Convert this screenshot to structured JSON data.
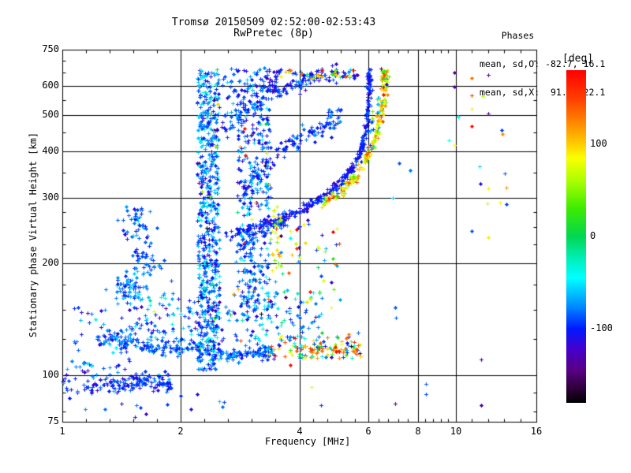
{
  "header": {
    "title": "Tromsø 20150509 02:52:00-02:53:43",
    "subtitle": "RwPretec (8p)"
  },
  "stats": {
    "heading": "    Phases",
    "line_o": "mean, sd,O: -82.7, 16.1",
    "line_x": "mean, sd,X:  91.1, 22.1"
  },
  "colorbar": {
    "unit": "[deg]",
    "tick_values": [
      100,
      0,
      -100
    ],
    "tick_labels": [
      "100",
      "0",
      "-100"
    ],
    "range": [
      -180,
      180
    ]
  },
  "chart_data": {
    "type": "scatter",
    "title": "Tromsø 20150509 02:52:00-02:53:43",
    "subtitle": "RwPretec (8p)",
    "xlabel": "Frequency [MHz]",
    "ylabel": "Stationary phase Virtual Height [km]",
    "x_scale": "log",
    "y_scale": "log",
    "xlim": [
      1,
      16
    ],
    "ylim": [
      75,
      750
    ],
    "x_major_ticks": [
      1,
      2,
      4,
      6,
      8,
      10,
      16
    ],
    "x_major_labels": [
      "1",
      "2",
      "4",
      "6",
      "8",
      "10",
      "16"
    ],
    "x_minor_divisions": 5,
    "y_labeled_ticks": [
      750,
      600,
      500,
      400,
      300,
      200,
      100,
      75
    ],
    "y_labeled_strings": [
      "750",
      "600",
      "500",
      "400",
      "300",
      "200",
      "100",
      "75"
    ],
    "y_minor_ticks": [
      700,
      650,
      550,
      450,
      350,
      275,
      250,
      225,
      175,
      150,
      125,
      90,
      80
    ],
    "x_gridlines": [
      2,
      4,
      6,
      8,
      10
    ],
    "y_gridlines": [
      600,
      500,
      400,
      300,
      200,
      100
    ],
    "grid_color": "#000000",
    "marker": "plus",
    "legend_position": "right-colorbar",
    "colormap_stops": [
      {
        "v": 180,
        "c": [
          255,
          0,
          0
        ]
      },
      {
        "v": 150,
        "c": [
          255,
          60,
          0
        ]
      },
      {
        "v": 120,
        "c": [
          255,
          145,
          0
        ]
      },
      {
        "v": 100,
        "c": [
          255,
          205,
          0
        ]
      },
      {
        "v": 85,
        "c": [
          250,
          255,
          0
        ]
      },
      {
        "v": 60,
        "c": [
          170,
          255,
          0
        ]
      },
      {
        "v": 30,
        "c": [
          60,
          235,
          0
        ]
      },
      {
        "v": 0,
        "c": [
          0,
          215,
          80
        ]
      },
      {
        "v": -25,
        "c": [
          0,
          240,
          190
        ]
      },
      {
        "v": -45,
        "c": [
          0,
          255,
          255
        ]
      },
      {
        "v": -75,
        "c": [
          0,
          140,
          255
        ]
      },
      {
        "v": -100,
        "c": [
          0,
          25,
          255
        ]
      },
      {
        "v": -122,
        "c": [
          70,
          0,
          205
        ]
      },
      {
        "v": -145,
        "c": [
          88,
          0,
          130
        ]
      },
      {
        "v": -165,
        "c": [
          45,
          0,
          55
        ]
      },
      {
        "v": -180,
        "c": [
          0,
          0,
          0
        ]
      }
    ],
    "phase_mean_sd_O": [
      -82.7,
      16.1
    ],
    "phase_mean_sd_X": [
      91.1,
      22.1
    ],
    "clusters": [
      {
        "name": "ground-echo-trace",
        "type": "trace",
        "n": 170,
        "points": [
          [
            1.0,
            95
          ],
          [
            1.15,
            93
          ],
          [
            1.3,
            96
          ],
          [
            1.45,
            94
          ],
          [
            1.6,
            96
          ],
          [
            1.75,
            95
          ],
          [
            1.88,
            97
          ]
        ],
        "jf": 0.004,
        "jh": 0.012,
        "phase": {
          "mean": -95,
          "sd": 15
        }
      },
      {
        "name": "e-region-trace",
        "type": "trace",
        "n": 270,
        "points": [
          [
            1.25,
            128
          ],
          [
            1.45,
            123
          ],
          [
            1.65,
            120
          ],
          [
            1.9,
            118
          ],
          [
            2.15,
            120
          ],
          [
            2.4,
            116
          ],
          [
            2.65,
            113
          ],
          [
            2.9,
            114
          ],
          [
            3.15,
            116
          ],
          [
            3.4,
            115
          ]
        ],
        "jf": 0.006,
        "jh": 0.01,
        "phase": {
          "mean": -85,
          "sd": 14
        }
      },
      {
        "name": "e-region-trace-mixed",
        "type": "trace",
        "n": 130,
        "points": [
          [
            3.4,
            117
          ],
          [
            3.7,
            120
          ],
          [
            4.0,
            117
          ],
          [
            4.3,
            120
          ],
          [
            4.6,
            117
          ],
          [
            4.9,
            120
          ],
          [
            5.3,
            118
          ],
          [
            5.7,
            117
          ]
        ],
        "jf": 0.008,
        "jh": 0.018,
        "phase": {
          "mix": [
            {
              "w": 0.45,
              "mean": 100,
              "sd": 45
            },
            {
              "w": 0.35,
              "mean": -75,
              "sd": 30
            },
            {
              "w": 0.2,
              "uniform": [
                -180,
                180
              ]
            }
          ]
        }
      },
      {
        "name": "e-spread-cloud",
        "type": "cloud",
        "n": 240,
        "f": [
          1.45,
          4.6
        ],
        "h": [
          123,
          168
        ],
        "phase": {
          "mix": [
            {
              "w": 0.94,
              "mean": -80,
              "sd": 28
            },
            {
              "w": 0.06,
              "uniform": [
                -180,
                180
              ]
            }
          ]
        }
      },
      {
        "name": "low-left-cloud",
        "type": "cloud",
        "n": 70,
        "f": [
          1.02,
          1.55
        ],
        "h": [
          100,
          152
        ],
        "phase": {
          "mean": -90,
          "sd": 20
        }
      },
      {
        "name": "left-blobs",
        "type": "blobs",
        "n": 150,
        "centers": [
          [
            1.5,
            178
          ],
          [
            1.62,
            210
          ],
          [
            1.55,
            248
          ],
          [
            1.45,
            168
          ],
          [
            1.7,
            196
          ],
          [
            1.58,
            265
          ]
        ],
        "sf": 0.02,
        "sh": 0.02,
        "phase": {
          "mean": -85,
          "sd": 15
        }
      },
      {
        "name": "dense-column-2.3MHz",
        "type": "cloud",
        "n": 600,
        "f": [
          2.2,
          2.5
        ],
        "h": [
          103,
          665
        ],
        "phase": {
          "mix": [
            {
              "w": 0.85,
              "mean": -85,
              "sd": 22
            },
            {
              "w": 0.12,
              "mean": -45,
              "sd": 12
            },
            {
              "w": 0.03,
              "uniform": [
                -180,
                180
              ]
            }
          ]
        }
      },
      {
        "name": "column-3MHz",
        "type": "cloud",
        "n": 280,
        "f": [
          2.78,
          3.38
        ],
        "h": [
          150,
          480
        ],
        "phase": {
          "mix": [
            {
              "w": 0.9,
              "mean": -85,
              "sd": 22
            },
            {
              "w": 0.1,
              "uniform": [
                -180,
                180
              ]
            }
          ]
        }
      },
      {
        "name": "upper-mid-cloud",
        "type": "cloud",
        "n": 110,
        "f": [
          2.55,
          3.35
        ],
        "h": [
          480,
          670
        ],
        "phase": {
          "mean": -90,
          "sd": 20
        }
      },
      {
        "name": "o-mode-trace",
        "type": "trace",
        "n": 320,
        "points": [
          [
            2.6,
            238
          ],
          [
            2.9,
            247
          ],
          [
            3.2,
            254
          ],
          [
            3.5,
            261
          ],
          [
            3.8,
            270
          ],
          [
            4.1,
            281
          ],
          [
            4.4,
            293
          ],
          [
            4.7,
            307
          ],
          [
            5.0,
            324
          ],
          [
            5.3,
            346
          ],
          [
            5.55,
            374
          ],
          [
            5.75,
            408
          ],
          [
            5.87,
            450
          ],
          [
            5.94,
            505
          ],
          [
            5.98,
            565
          ],
          [
            6.0,
            620
          ],
          [
            6.01,
            652
          ]
        ],
        "jf": 0.003,
        "jh": 0.006,
        "phase": {
          "mean": -102,
          "sd": 10
        }
      },
      {
        "name": "x-mode-trace",
        "type": "trace",
        "n": 220,
        "points": [
          [
            4.55,
            288
          ],
          [
            4.9,
            302
          ],
          [
            5.25,
            320
          ],
          [
            5.6,
            345
          ],
          [
            5.9,
            378
          ],
          [
            6.15,
            420
          ],
          [
            6.35,
            470
          ],
          [
            6.48,
            525
          ],
          [
            6.55,
            580
          ],
          [
            6.58,
            630
          ],
          [
            6.59,
            652
          ]
        ],
        "jf": 0.004,
        "jh": 0.008,
        "phase": {
          "mix": [
            {
              "w": 0.7,
              "mean": 95,
              "sd": 30
            },
            {
              "w": 0.15,
              "mean": 40,
              "sd": 25
            },
            {
              "w": 0.15,
              "uniform": [
                -180,
                180
              ]
            }
          ]
        }
      },
      {
        "name": "multihop-upper-trace",
        "type": "trace",
        "n": 140,
        "points": [
          [
            2.3,
            405
          ],
          [
            2.6,
            455
          ],
          [
            2.95,
            510
          ],
          [
            3.3,
            560
          ],
          [
            3.7,
            595
          ],
          [
            4.15,
            622
          ],
          [
            4.6,
            640
          ],
          [
            5.1,
            652
          ],
          [
            5.55,
            657
          ]
        ],
        "jf": 0.006,
        "jh": 0.012,
        "phase": {
          "mean": -95,
          "sd": 14
        }
      },
      {
        "name": "multihop-mid-trace",
        "type": "trace",
        "n": 110,
        "points": [
          [
            2.78,
            300
          ],
          [
            3.05,
            340
          ],
          [
            3.35,
            378
          ],
          [
            3.7,
            415
          ],
          [
            4.1,
            445
          ],
          [
            4.55,
            465
          ],
          [
            4.9,
            472
          ]
        ],
        "jf": 0.006,
        "jh": 0.012,
        "phase": {
          "mean": -90,
          "sd": 14
        }
      },
      {
        "name": "multihop-low-trace",
        "type": "trace",
        "n": 55,
        "points": [
          [
            2.78,
            213
          ],
          [
            3.0,
            230
          ],
          [
            3.25,
            246
          ],
          [
            3.5,
            258
          ],
          [
            3.65,
            263
          ]
        ],
        "jf": 0.005,
        "jh": 0.01,
        "phase": {
          "mean": -88,
          "sd": 13
        }
      },
      {
        "name": "top-arc-mixed",
        "type": "cloud",
        "n": 42,
        "f": [
          3.45,
          5.65
        ],
        "h": [
          628,
          663
        ],
        "phase": {
          "mix": [
            {
              "w": 0.55,
              "mean": 100,
              "sd": 45
            },
            {
              "w": 0.45,
              "mean": -105,
              "sd": 18
            }
          ]
        }
      },
      {
        "name": "top-blue-knot",
        "type": "cloud",
        "n": 40,
        "f": [
          3.3,
          3.6
        ],
        "h": [
          575,
          665
        ],
        "phase": {
          "mean": -110,
          "sd": 14
        }
      },
      {
        "name": "mid-right-scatter",
        "type": "cloud",
        "n": 60,
        "f": [
          3.45,
          5.2
        ],
        "h": [
          148,
          270
        ],
        "phase": {
          "mix": [
            {
              "w": 0.5,
              "mean": 90,
              "sd": 40
            },
            {
              "w": 0.5,
              "mean": -80,
              "sd": 30
            }
          ]
        }
      },
      {
        "name": "yellow-knot",
        "type": "cloud",
        "n": 26,
        "f": [
          3.33,
          3.6
        ],
        "h": [
          190,
          285
        ],
        "phase": {
          "mean": 85,
          "sd": 30
        }
      },
      {
        "name": "between-traces",
        "type": "cloud",
        "n": 14,
        "f": [
          6.05,
          6.45
        ],
        "h": [
          440,
          560
        ],
        "phase": {
          "mix": [
            {
              "w": 0.6,
              "mean": -80,
              "sd": 25
            },
            {
              "w": 0.4,
              "mean": 60,
              "sd": 40
            }
          ]
        }
      },
      {
        "name": "hop-fragment",
        "type": "cloud",
        "n": 18,
        "f": [
          4.7,
          5.2
        ],
        "h": [
          455,
          520
        ],
        "phase": {
          "mean": -90,
          "sd": 15
        }
      },
      {
        "name": "below-ground-sparse",
        "type": "cloud",
        "n": 14,
        "f": [
          1.1,
          2.6
        ],
        "h": [
          77,
          90
        ],
        "phase": {
          "mean": -95,
          "sd": 18
        }
      }
    ],
    "isolated_points": [
      [
        9.9,
        650,
        -140
      ],
      [
        10.96,
        628,
        130
      ],
      [
        12.05,
        643,
        -140
      ],
      [
        9.9,
        597,
        -135
      ],
      [
        10.96,
        565,
        150
      ],
      [
        11.7,
        562,
        60
      ],
      [
        10.96,
        520,
        90
      ],
      [
        12.05,
        505,
        -140
      ],
      [
        10.14,
        495,
        -45
      ],
      [
        10.96,
        467,
        170
      ],
      [
        13.04,
        455,
        -90
      ],
      [
        13.1,
        446,
        120
      ],
      [
        9.58,
        428,
        -45
      ],
      [
        9.9,
        416,
        85
      ],
      [
        11.48,
        365,
        -55
      ],
      [
        13.3,
        348,
        -85
      ],
      [
        11.53,
        328,
        -110
      ],
      [
        12.05,
        318,
        90
      ],
      [
        13.42,
        320,
        120
      ],
      [
        12.0,
        290,
        70
      ],
      [
        12.92,
        291,
        88
      ],
      [
        13.42,
        288,
        -90
      ],
      [
        10.96,
        244,
        -85
      ],
      [
        12.05,
        235,
        90
      ],
      [
        7.0,
        152,
        -85
      ],
      [
        7.05,
        143,
        -85
      ],
      [
        11.6,
        110,
        -130
      ],
      [
        8.4,
        95,
        -85
      ],
      [
        8.4,
        89,
        -90
      ],
      [
        11.6,
        83,
        -135
      ],
      [
        7.16,
        372,
        -85
      ],
      [
        7.66,
        355,
        -80
      ],
      [
        6.9,
        300,
        -60
      ],
      [
        4.3,
        93,
        80
      ],
      [
        7.0,
        84,
        -135
      ],
      [
        4.55,
        83,
        -95
      ]
    ]
  }
}
